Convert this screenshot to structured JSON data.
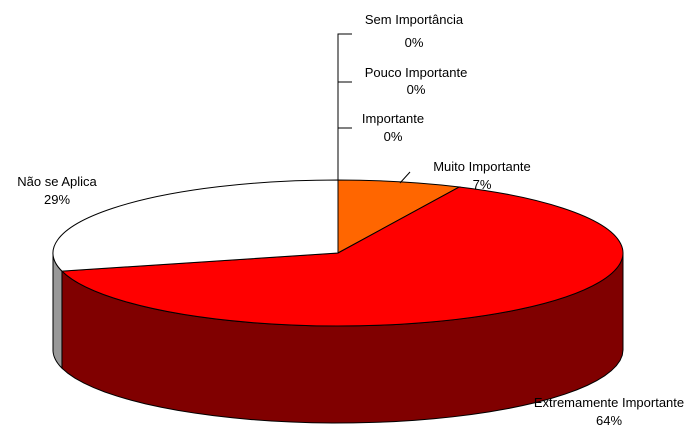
{
  "chart_data": {
    "type": "pie",
    "style": "3d",
    "title": "",
    "slices": [
      {
        "label": "Sem Importância",
        "value": 0,
        "display": "0%",
        "color": "#ff0000"
      },
      {
        "label": "Pouco Importante",
        "value": 0,
        "display": "0%",
        "color": "#ff0000"
      },
      {
        "label": "Importante",
        "value": 0,
        "display": "0%",
        "color": "#ff0000"
      },
      {
        "label": "Muito Importante",
        "value": 7,
        "display": "7%",
        "color": "#ff6600",
        "side_color": "#993d00"
      },
      {
        "label": "Extremamente Importante",
        "value": 64,
        "display": "64%",
        "color": "#ff0000",
        "side_color": "#800000"
      },
      {
        "label": "Não se Aplica",
        "value": 29,
        "display": "29%",
        "color": "#ffffff",
        "side_color": "#999999"
      }
    ]
  }
}
